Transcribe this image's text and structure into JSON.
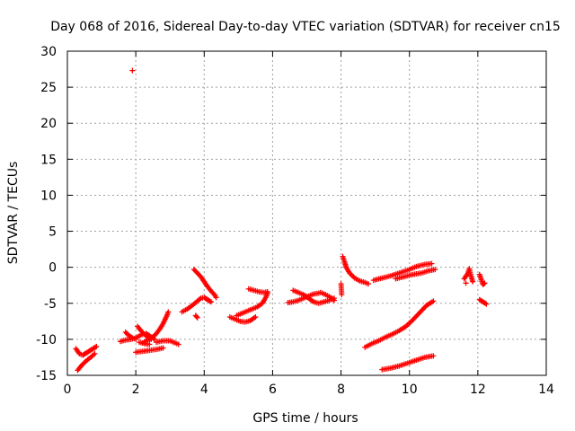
{
  "chart_data": {
    "type": "scatter",
    "title": "Day 068 of 2016, Sidereal Day-to-day VTEC variation (SDTVAR) for receiver cn15",
    "xlabel": "GPS time / hours",
    "ylabel": "SDTVAR / TECUs",
    "xlim": [
      0,
      14
    ],
    "ylim": [
      -15,
      30
    ],
    "x_ticks": [
      "0",
      "2",
      "4",
      "6",
      "8",
      "10",
      "12",
      "14"
    ],
    "y_ticks": [
      "-15",
      "-10",
      "-5",
      "0",
      "5",
      "10",
      "15",
      "20",
      "25",
      "30"
    ],
    "grid": true,
    "marker": "+",
    "color": "#ff0000",
    "segments": [
      [
        [
          0.25,
          -11.3
        ],
        [
          0.35,
          -12.0
        ],
        [
          0.45,
          -12.2
        ],
        [
          0.55,
          -11.9
        ],
        [
          0.65,
          -11.6
        ],
        [
          0.75,
          -11.3
        ],
        [
          0.85,
          -11.0
        ]
      ],
      [
        [
          0.3,
          -14.3
        ],
        [
          0.42,
          -13.6
        ],
        [
          0.55,
          -13.0
        ],
        [
          0.68,
          -12.5
        ],
        [
          0.8,
          -12.0
        ]
      ],
      [
        [
          1.55,
          -10.3
        ],
        [
          1.7,
          -10.1
        ],
        [
          1.85,
          -10.0
        ],
        [
          2.0,
          -9.8
        ],
        [
          2.15,
          -9.4
        ],
        [
          2.3,
          -9.2
        ],
        [
          2.4,
          -9.5
        ],
        [
          2.55,
          -10.0
        ]
      ],
      [
        [
          1.7,
          -9.0
        ],
        [
          1.8,
          -9.5
        ],
        [
          1.9,
          -9.8
        ],
        [
          2.0,
          -10.0
        ]
      ],
      [
        [
          2.05,
          -8.2
        ],
        [
          2.15,
          -8.8
        ],
        [
          2.25,
          -9.3
        ],
        [
          2.35,
          -9.7
        ],
        [
          2.45,
          -10.0
        ]
      ],
      [
        [
          2.2,
          -10.5
        ],
        [
          2.35,
          -10.1
        ],
        [
          2.5,
          -9.7
        ],
        [
          2.6,
          -9.2
        ],
        [
          2.7,
          -8.6
        ],
        [
          2.8,
          -7.8
        ],
        [
          2.9,
          -6.8
        ],
        [
          2.95,
          -6.2
        ]
      ],
      [
        [
          2.0,
          -11.8
        ],
        [
          2.15,
          -11.7
        ],
        [
          2.3,
          -11.6
        ],
        [
          2.45,
          -11.5
        ],
        [
          2.6,
          -11.4
        ],
        [
          2.7,
          -11.3
        ],
        [
          2.8,
          -11.2
        ]
      ],
      [
        [
          2.6,
          -10.4
        ],
        [
          2.8,
          -10.2
        ],
        [
          3.0,
          -10.2
        ],
        [
          3.15,
          -10.5
        ],
        [
          3.25,
          -10.7
        ]
      ],
      [
        [
          2.1,
          -10.4
        ],
        [
          2.25,
          -10.6
        ],
        [
          2.4,
          -10.7
        ]
      ],
      [
        [
          1.9,
          27.3
        ]
      ],
      [
        [
          3.35,
          -6.2
        ],
        [
          3.5,
          -5.8
        ],
        [
          3.65,
          -5.3
        ],
        [
          3.8,
          -4.7
        ],
        [
          3.9,
          -4.3
        ],
        [
          4.0,
          -4.2
        ],
        [
          4.1,
          -4.5
        ],
        [
          4.2,
          -4.8
        ]
      ],
      [
        [
          3.75,
          -6.7
        ],
        [
          3.8,
          -7.0
        ]
      ],
      [
        [
          3.7,
          -0.3
        ],
        [
          3.8,
          -0.8
        ],
        [
          3.9,
          -1.3
        ],
        [
          4.0,
          -2.0
        ],
        [
          4.1,
          -2.7
        ],
        [
          4.2,
          -3.3
        ],
        [
          4.3,
          -3.8
        ],
        [
          4.35,
          -4.2
        ]
      ],
      [
        [
          4.75,
          -6.9
        ],
        [
          4.9,
          -7.2
        ],
        [
          5.05,
          -7.5
        ],
        [
          5.2,
          -7.6
        ],
        [
          5.35,
          -7.4
        ],
        [
          5.5,
          -6.9
        ]
      ],
      [
        [
          4.95,
          -6.7
        ],
        [
          5.1,
          -6.4
        ],
        [
          5.25,
          -6.1
        ],
        [
          5.4,
          -5.8
        ],
        [
          5.55,
          -5.5
        ],
        [
          5.7,
          -5.0
        ],
        [
          5.8,
          -4.2
        ],
        [
          5.85,
          -3.6
        ]
      ],
      [
        [
          5.3,
          -3.0
        ],
        [
          5.45,
          -3.2
        ],
        [
          5.6,
          -3.4
        ],
        [
          5.75,
          -3.5
        ],
        [
          5.85,
          -3.4
        ]
      ],
      [
        [
          6.45,
          -4.9
        ],
        [
          6.6,
          -4.8
        ],
        [
          6.75,
          -4.6
        ],
        [
          6.9,
          -4.3
        ],
        [
          7.05,
          -4.0
        ],
        [
          7.2,
          -3.7
        ],
        [
          7.35,
          -3.6
        ]
      ],
      [
        [
          6.6,
          -3.2
        ],
        [
          6.75,
          -3.5
        ],
        [
          6.9,
          -3.8
        ],
        [
          7.05,
          -4.3
        ],
        [
          7.2,
          -4.8
        ],
        [
          7.35,
          -5.0
        ],
        [
          7.5,
          -4.8
        ],
        [
          7.65,
          -4.6
        ],
        [
          7.8,
          -4.3
        ]
      ],
      [
        [
          7.4,
          -3.5
        ],
        [
          7.55,
          -3.8
        ],
        [
          7.7,
          -4.2
        ],
        [
          7.8,
          -4.6
        ]
      ],
      [
        [
          8.0,
          -2.3
        ],
        [
          8.02,
          -3.8
        ]
      ],
      [
        [
          8.05,
          1.5
        ],
        [
          8.1,
          0.8
        ],
        [
          8.15,
          0.0
        ],
        [
          8.25,
          -0.8
        ],
        [
          8.4,
          -1.5
        ],
        [
          8.55,
          -1.9
        ],
        [
          8.7,
          -2.1
        ],
        [
          8.8,
          -2.3
        ]
      ],
      [
        [
          8.7,
          -11.1
        ],
        [
          8.9,
          -10.6
        ],
        [
          9.1,
          -10.2
        ],
        [
          9.3,
          -9.7
        ],
        [
          9.5,
          -9.3
        ],
        [
          9.7,
          -8.8
        ],
        [
          9.9,
          -8.2
        ],
        [
          10.1,
          -7.3
        ],
        [
          10.3,
          -6.3
        ],
        [
          10.5,
          -5.3
        ],
        [
          10.7,
          -4.7
        ]
      ],
      [
        [
          9.2,
          -14.2
        ],
        [
          9.45,
          -14.0
        ],
        [
          9.7,
          -13.7
        ],
        [
          9.95,
          -13.3
        ],
        [
          10.2,
          -12.9
        ],
        [
          10.45,
          -12.5
        ],
        [
          10.7,
          -12.3
        ]
      ],
      [
        [
          8.95,
          -1.8
        ],
        [
          9.2,
          -1.5
        ],
        [
          9.45,
          -1.2
        ],
        [
          9.7,
          -0.8
        ],
        [
          9.95,
          -0.4
        ],
        [
          10.2,
          0.1
        ],
        [
          10.45,
          0.4
        ],
        [
          10.65,
          0.5
        ]
      ],
      [
        [
          9.6,
          -1.6
        ],
        [
          9.85,
          -1.3
        ],
        [
          10.1,
          -1.0
        ],
        [
          10.35,
          -0.8
        ],
        [
          10.55,
          -0.5
        ],
        [
          10.75,
          -0.3
        ]
      ],
      [
        [
          11.6,
          -1.6
        ],
        [
          11.7,
          -0.9
        ],
        [
          11.75,
          -0.2
        ],
        [
          11.8,
          -1.2
        ],
        [
          11.85,
          -2.0
        ]
      ],
      [
        [
          11.65,
          -2.2
        ]
      ],
      [
        [
          12.05,
          -1.0
        ],
        [
          12.1,
          -1.7
        ],
        [
          12.15,
          -2.4
        ],
        [
          12.2,
          -2.2
        ]
      ],
      [
        [
          12.05,
          -4.5
        ],
        [
          12.15,
          -4.8
        ],
        [
          12.25,
          -5.1
        ]
      ]
    ]
  }
}
